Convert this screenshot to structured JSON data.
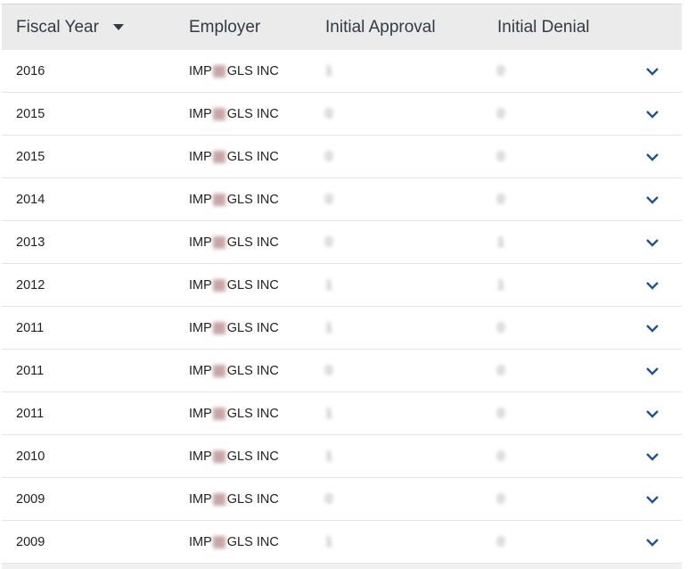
{
  "table": {
    "columns": [
      "Fiscal Year",
      "Employer",
      "Initial Approval",
      "Initial Denial"
    ],
    "sort_icon": "caret-down-icon",
    "row_icon": "chevron-down-icon",
    "accent_color": "#205493",
    "rows": [
      {
        "year": "2016",
        "employer_start": "IMP",
        "employer_end": "GLS INC",
        "approval": "1",
        "denial": "0"
      },
      {
        "year": "2015",
        "employer_start": "IMP",
        "employer_end": "GLS INC",
        "approval": "0",
        "denial": "0"
      },
      {
        "year": "2015",
        "employer_start": "IMP",
        "employer_end": "GLS INC",
        "approval": "0",
        "denial": "0"
      },
      {
        "year": "2014",
        "employer_start": "IMP",
        "employer_end": "GLS INC",
        "approval": "0",
        "denial": "0"
      },
      {
        "year": "2013",
        "employer_start": "IMP",
        "employer_end": "GLS INC",
        "approval": "0",
        "denial": "1"
      },
      {
        "year": "2012",
        "employer_start": "IMP",
        "employer_end": "GLS INC",
        "approval": "1",
        "denial": "1"
      },
      {
        "year": "2011",
        "employer_start": "IMP",
        "employer_end": "GLS INC",
        "approval": "1",
        "denial": "0"
      },
      {
        "year": "2011",
        "employer_start": "IMP",
        "employer_end": "GLS INC",
        "approval": "0",
        "denial": "0"
      },
      {
        "year": "2011",
        "employer_start": "IMP",
        "employer_end": "GLS INC",
        "approval": "1",
        "denial": "0"
      },
      {
        "year": "2010",
        "employer_start": "IMP",
        "employer_end": "GLS INC",
        "approval": "1",
        "denial": "0"
      },
      {
        "year": "2009",
        "employer_start": "IMP",
        "employer_end": "GLS INC",
        "approval": "0",
        "denial": "0"
      },
      {
        "year": "2009",
        "employer_start": "IMP",
        "employer_end": "GLS INC",
        "approval": "1",
        "denial": "0"
      }
    ]
  }
}
